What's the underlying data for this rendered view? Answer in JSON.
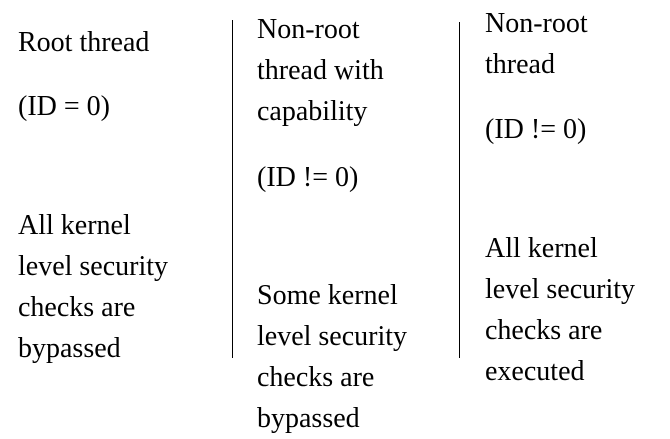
{
  "columns": [
    {
      "title_lines": [
        "Root thread"
      ],
      "id_label": "(ID = 0)",
      "description_lines": [
        "All kernel",
        "level security",
        "checks are",
        "bypassed"
      ]
    },
    {
      "title_lines": [
        "Non-root",
        "thread with",
        "capability"
      ],
      "id_label": "(ID != 0)",
      "description_lines": [
        "Some kernel",
        "level security",
        "checks are",
        "bypassed"
      ]
    },
    {
      "title_lines": [
        "Non-root",
        "thread"
      ],
      "id_label": "(ID != 0)",
      "description_lines": [
        "All kernel",
        "level security",
        "checks are",
        "executed"
      ]
    }
  ]
}
